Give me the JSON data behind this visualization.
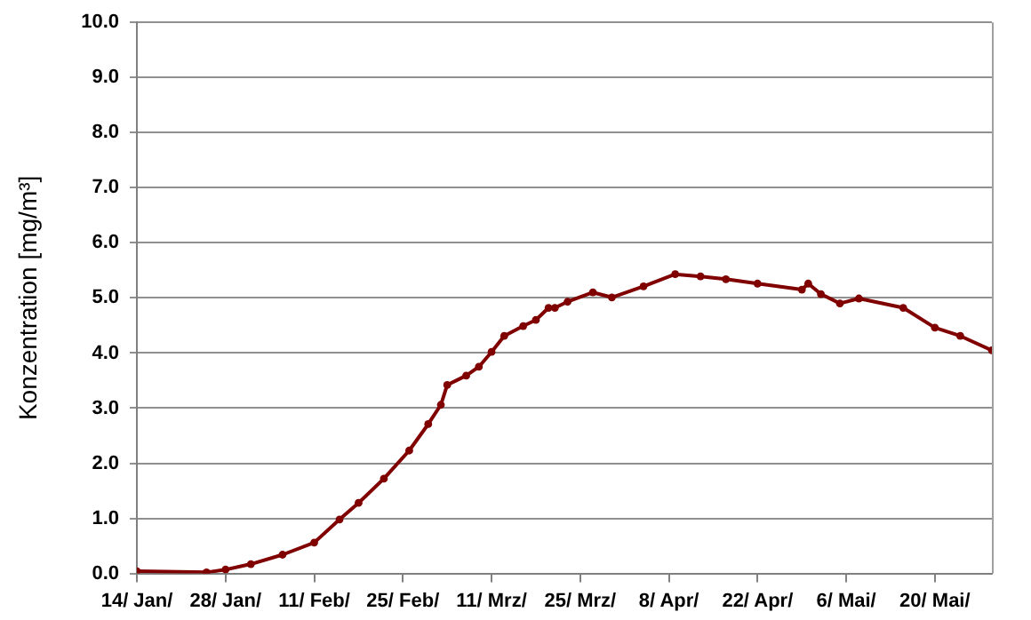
{
  "chart_data": {
    "type": "line",
    "ylabel": "Konzentration [mg/m³]",
    "x": [
      "--01-14",
      "--01-25",
      "--01-28",
      "--02-01",
      "--02-06",
      "--02-11",
      "--02-15",
      "--02-18",
      "--02-22",
      "--02-26",
      "--03-01",
      "--03-03",
      "--03-04",
      "--03-07",
      "--03-09",
      "--03-11",
      "--03-13",
      "--03-16",
      "--03-18",
      "--03-20",
      "--03-21",
      "--03-23",
      "--03-27",
      "--03-30",
      "--04-04",
      "--04-09",
      "--04-13",
      "--04-17",
      "--04-22",
      "--04-29",
      "--04-30",
      "--05-02",
      "--05-05",
      "--05-08",
      "--05-15",
      "--05-20",
      "--05-24",
      "--05-29"
    ],
    "series": [
      {
        "color": "#800000",
        "values": [
          0.04,
          0.02,
          0.07,
          0.17,
          0.34,
          0.56,
          0.98,
          1.28,
          1.72,
          2.23,
          2.71,
          3.06,
          3.42,
          3.59,
          3.75,
          4.02,
          4.31,
          4.49,
          4.6,
          4.82,
          4.82,
          4.93,
          5.1,
          5.01,
          5.21,
          5.43,
          5.39,
          5.34,
          5.26,
          5.15,
          5.26,
          5.07,
          4.9,
          4.99,
          4.82,
          4.46,
          4.31,
          4.05
        ]
      }
    ],
    "xlim": [
      "--01-14",
      "--05-29"
    ],
    "xticks": [
      {
        "value": "--01-14",
        "label": "14/ Jan/"
      },
      {
        "value": "--01-28",
        "label": "28/ Jan/"
      },
      {
        "value": "--02-11",
        "label": "11/ Feb/"
      },
      {
        "value": "--02-25",
        "label": "25/ Feb/"
      },
      {
        "value": "--03-11",
        "label": "11/ Mrz/"
      },
      {
        "value": "--03-25",
        "label": "25/ Mrz/"
      },
      {
        "value": "--04-08",
        "label": "8/ Apr/"
      },
      {
        "value": "--04-22",
        "label": "22/ Apr/"
      },
      {
        "value": "--05-06",
        "label": "6/ Mai/"
      },
      {
        "value": "--05-20",
        "label": "20/ Mai/"
      }
    ],
    "ylim": [
      0,
      10
    ],
    "yticks": [
      {
        "value": 0,
        "label": "0.0"
      },
      {
        "value": 1,
        "label": "1.0"
      },
      {
        "value": 2,
        "label": "2.0"
      },
      {
        "value": 3,
        "label": "3.0"
      },
      {
        "value": 4,
        "label": "4.0"
      },
      {
        "value": 5,
        "label": "5.0"
      },
      {
        "value": 6,
        "label": "6.0"
      },
      {
        "value": 7,
        "label": "7.0"
      },
      {
        "value": 8,
        "label": "8.0"
      },
      {
        "value": 9,
        "label": "9.0"
      },
      {
        "value": 10,
        "label": "10.0"
      }
    ],
    "grid": "y",
    "marker": "circle",
    "legend": false
  }
}
